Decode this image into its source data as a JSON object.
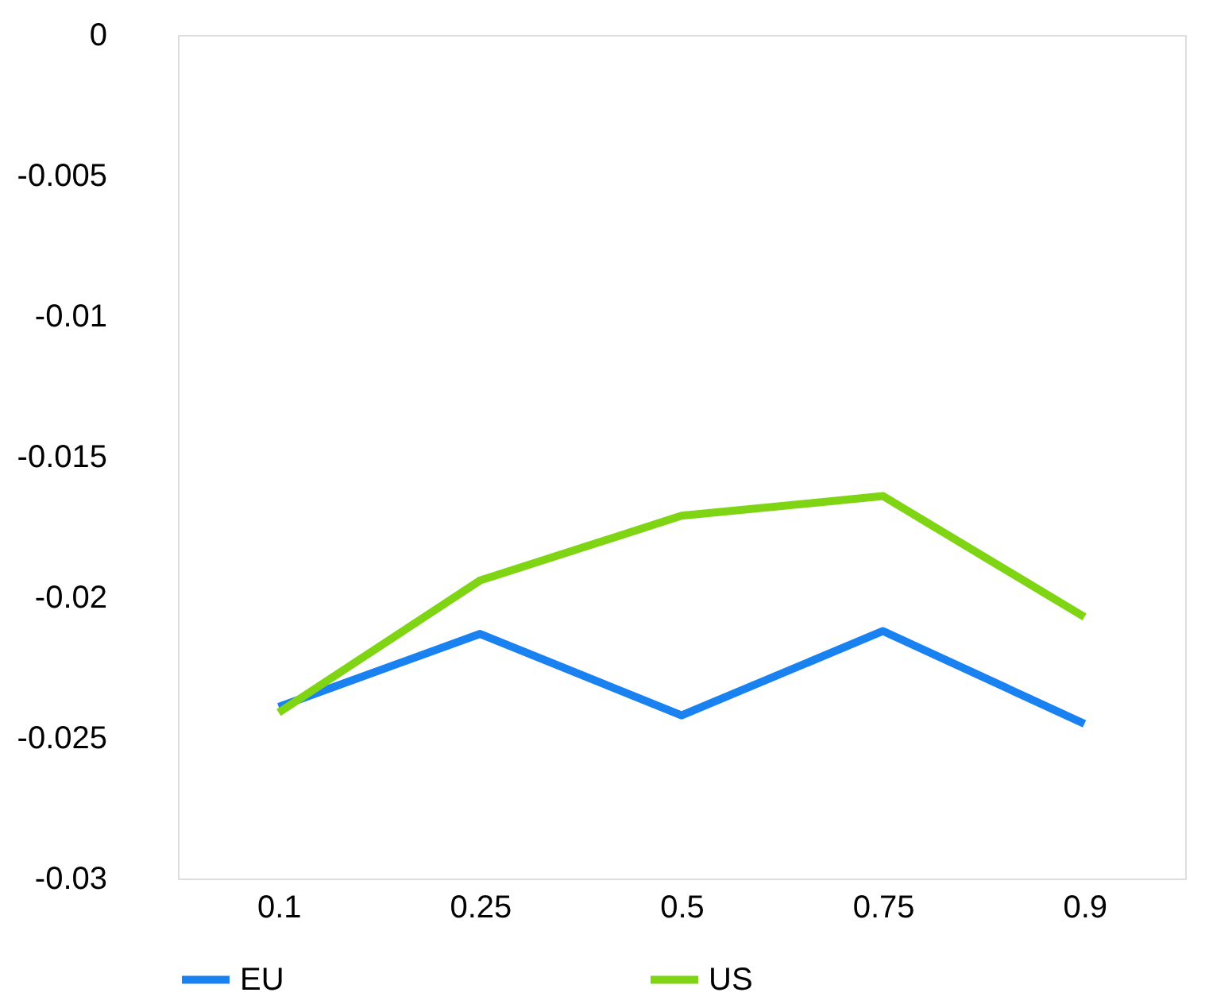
{
  "chart_data": {
    "type": "line",
    "categories": [
      "0.1",
      "0.25",
      "0.5",
      "0.75",
      "0.9"
    ],
    "series": [
      {
        "name": "EU",
        "color": "#1a82f0",
        "values": [
          -0.0239,
          -0.0213,
          -0.0242,
          -0.0212,
          -0.0245
        ]
      },
      {
        "name": "US",
        "color": "#7fd414",
        "values": [
          -0.0241,
          -0.0194,
          -0.0171,
          -0.0164,
          -0.0207
        ]
      }
    ],
    "ylim": [
      -0.03,
      0
    ],
    "yticks": [
      -0.03,
      -0.025,
      -0.02,
      -0.015,
      -0.01,
      -0.005,
      0
    ],
    "grid": false,
    "legend": "bottom",
    "marker": "none",
    "line_style": "solid"
  }
}
